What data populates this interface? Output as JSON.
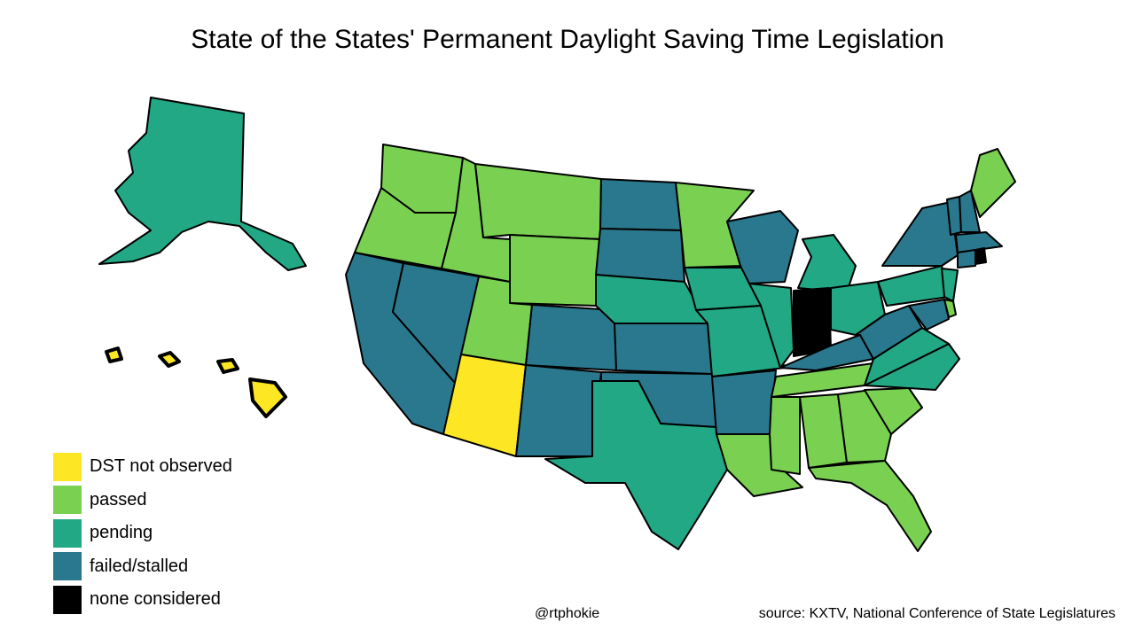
{
  "title": "State of the States' Permanent Daylight Saving Time Legislation",
  "credit": "@rtphokie",
  "source": "source: KXTV, National Conference of State Legislatures",
  "colors": {
    "dst_not_observed": "#fde725",
    "passed": "#7ad151",
    "pending": "#22a884",
    "failed_stalled": "#2a788e",
    "none_considered": "#000000"
  },
  "legend": [
    {
      "key": "dst_not_observed",
      "label": "DST not observed"
    },
    {
      "key": "passed",
      "label": "passed"
    },
    {
      "key": "pending",
      "label": "pending"
    },
    {
      "key": "failed_stalled",
      "label": "failed/stalled"
    },
    {
      "key": "none_considered",
      "label": "none considered"
    }
  ],
  "states": {
    "AK": "pending",
    "HI": "dst_not_observed",
    "WA": "passed",
    "OR": "passed",
    "CA": "failed_stalled",
    "NV": "failed_stalled",
    "ID": "passed",
    "MT": "passed",
    "WY": "passed",
    "UT": "passed",
    "AZ": "dst_not_observed",
    "CO": "failed_stalled",
    "NM": "failed_stalled",
    "ND": "failed_stalled",
    "SD": "failed_stalled",
    "NE": "pending",
    "KS": "failed_stalled",
    "OK": "failed_stalled",
    "TX": "pending",
    "MN": "passed",
    "IA": "pending",
    "MO": "pending",
    "AR": "failed_stalled",
    "LA": "passed",
    "WI": "failed_stalled",
    "IL": "pending",
    "MI": "pending",
    "IN": "none_considered",
    "OH": "pending",
    "KY": "failed_stalled",
    "TN": "passed",
    "MS": "passed",
    "AL": "passed",
    "GA": "passed",
    "FL": "passed",
    "SC": "passed",
    "NC": "pending",
    "VA": "pending",
    "WV": "failed_stalled",
    "PA": "pending",
    "NY": "failed_stalled",
    "VT": "failed_stalled",
    "NH": "failed_stalled",
    "ME": "passed",
    "MA": "failed_stalled",
    "CT": "failed_stalled",
    "RI": "none_considered",
    "NJ": "pending",
    "DE": "passed",
    "MD": "failed_stalled"
  }
}
